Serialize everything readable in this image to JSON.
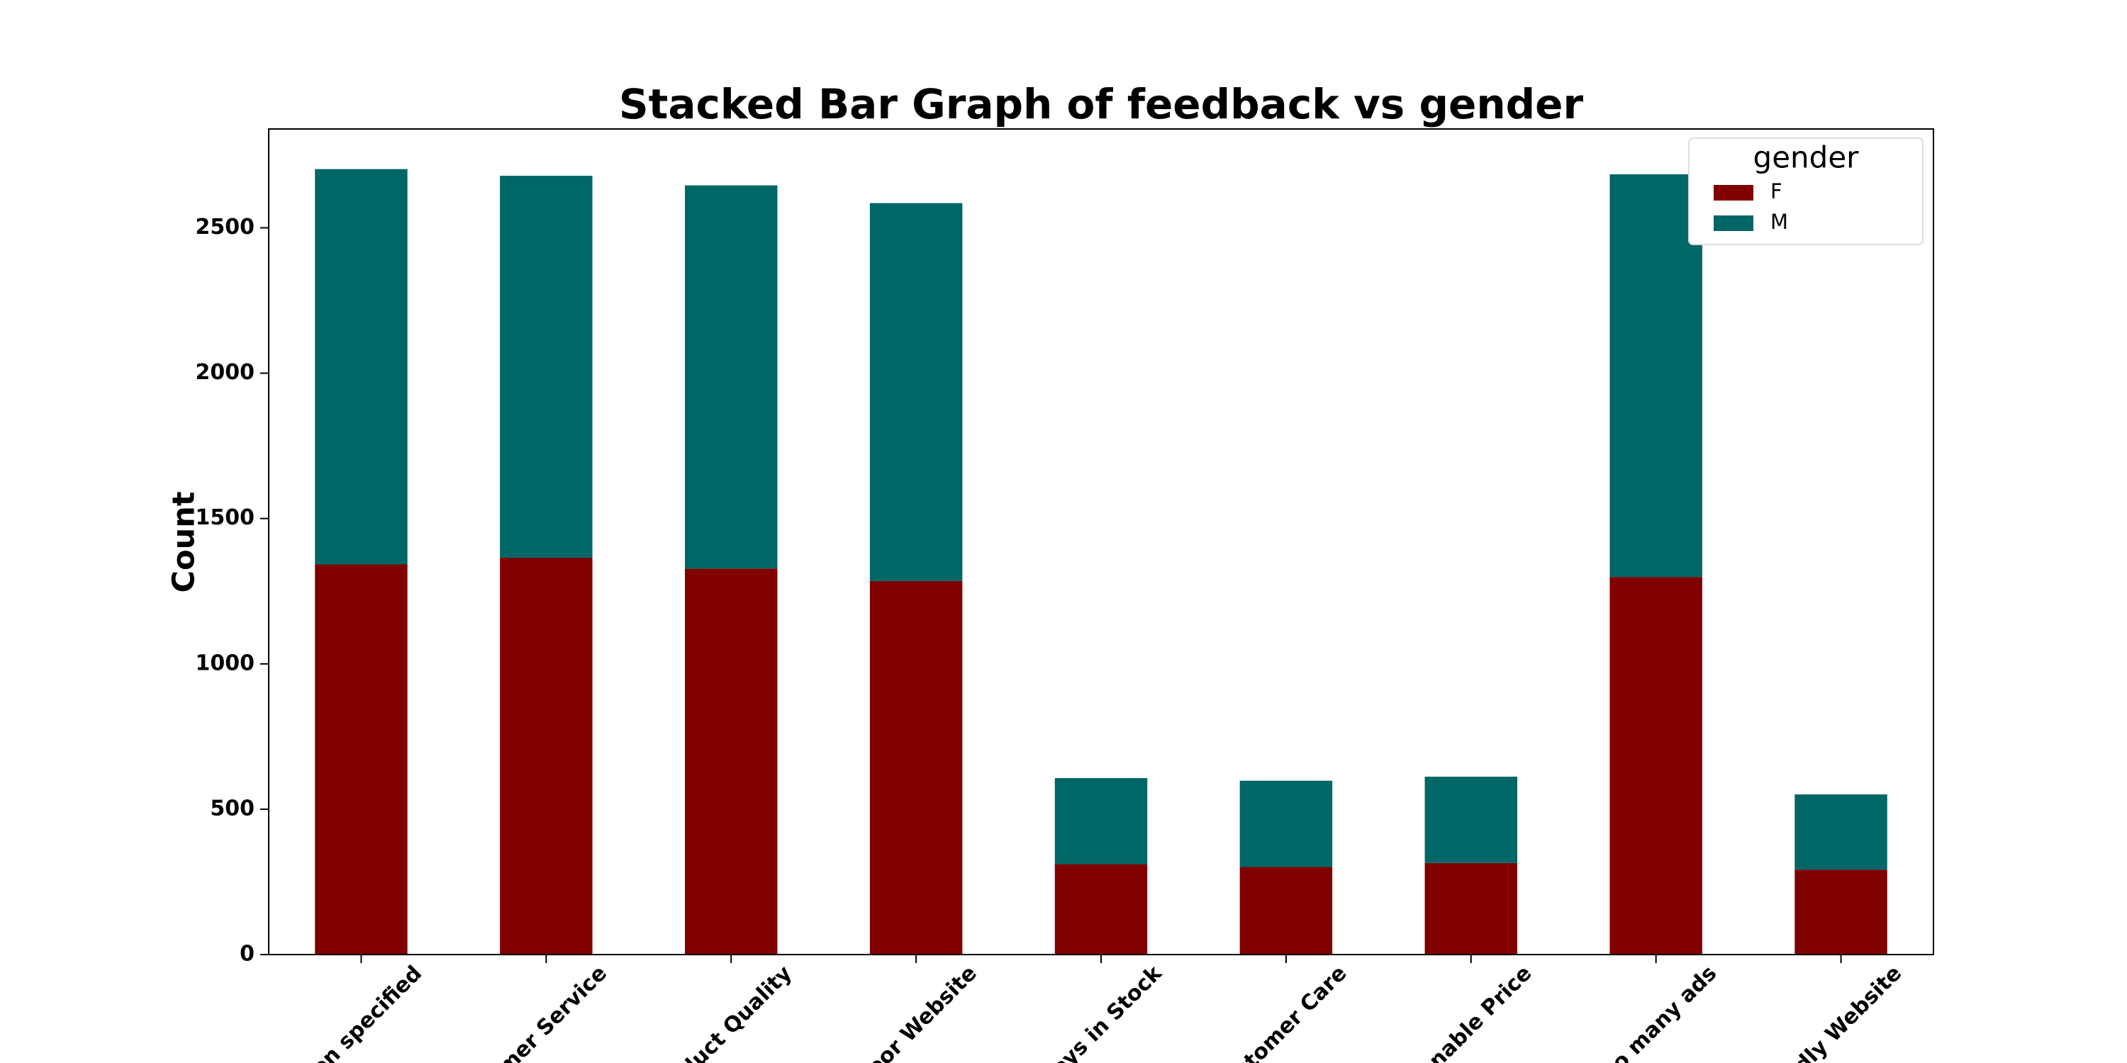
{
  "chart_data": {
    "type": "stacked-bar",
    "title": "Stacked Bar Graph of feedback vs gender",
    "ylabel": "Count",
    "categories": [
      "son specified",
      "tomer Service",
      "oduct Quality",
      "Poor Website",
      "ways in Stock",
      "ustomer Care",
      "sonable Price",
      "Too many ads",
      "ndly Website"
    ],
    "series": [
      {
        "name": "F",
        "color": "#800000",
        "values": [
          1342,
          1365,
          1328,
          1285,
          311,
          301,
          315,
          1299,
          292
        ]
      },
      {
        "name": "M",
        "color": "#006666",
        "values": [
          1360,
          1314,
          1318,
          1300,
          296,
          297,
          297,
          1385,
          259
        ]
      }
    ],
    "ylim": [
      0,
      2840
    ],
    "yticks": [
      0,
      500,
      1000,
      1500,
      2000,
      2500
    ],
    "legend_title": "gender",
    "legend": "upper right"
  }
}
